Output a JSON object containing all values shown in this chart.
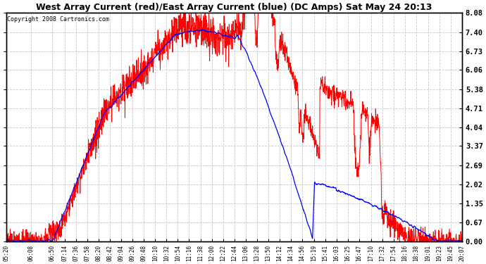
{
  "title": "West Array Current (red)/East Array Current (blue) (DC Amps) Sat May 24 20:13",
  "copyright": "Copyright 2008 Cartronics.com",
  "ylabel_values": [
    0.0,
    0.67,
    1.35,
    2.02,
    2.69,
    3.37,
    4.04,
    4.71,
    5.38,
    6.06,
    6.73,
    7.4,
    8.08
  ],
  "ymin": 0.0,
  "ymax": 8.08,
  "bg_color": "#ffffff",
  "grid_color": "#c8c8c8",
  "red_color": "#ff0000",
  "blue_color": "#0000ff",
  "x_tick_labels": [
    "05:20",
    "06:08",
    "06:50",
    "07:14",
    "07:36",
    "07:58",
    "08:20",
    "08:42",
    "09:04",
    "09:26",
    "09:48",
    "10:10",
    "10:32",
    "10:54",
    "11:16",
    "11:38",
    "12:00",
    "12:22",
    "12:44",
    "13:06",
    "13:28",
    "13:50",
    "14:12",
    "14:34",
    "14:56",
    "15:19",
    "15:41",
    "16:03",
    "16:25",
    "16:47",
    "17:10",
    "17:32",
    "17:54",
    "18:16",
    "18:38",
    "19:01",
    "19:23",
    "19:45",
    "20:07"
  ],
  "figwidth": 6.9,
  "figheight": 3.75,
  "title_fontsize": 9,
  "copyright_fontsize": 6,
  "ylabel_fontsize": 7.5,
  "xlabel_fontsize": 5.5
}
